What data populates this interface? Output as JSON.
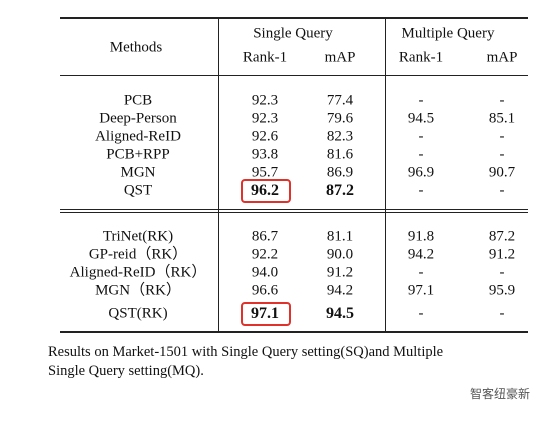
{
  "table": {
    "methods_header": "Methods",
    "groups": [
      {
        "label": "Single Query",
        "sub": [
          "Rank-1",
          "mAP"
        ]
      },
      {
        "label": "Multiple Query",
        "sub": [
          "Rank-1",
          "mAP"
        ]
      }
    ],
    "sections": [
      [
        [
          "PCB",
          "92.3",
          "77.4",
          "-",
          "-"
        ],
        [
          "Deep-Person",
          "92.3",
          "79.6",
          "94.5",
          "85.1"
        ],
        [
          "Aligned-ReID",
          "92.6",
          "82.3",
          "-",
          "-"
        ],
        [
          "PCB+RPP",
          "93.8",
          "81.6",
          "-",
          "-"
        ],
        [
          "MGN",
          "95.7",
          "86.9",
          "96.9",
          "90.7"
        ],
        [
          "QST",
          "96.2",
          "87.2",
          "-",
          "-"
        ]
      ],
      [
        [
          "TriNet(RK)",
          "86.7",
          "81.1",
          "91.8",
          "87.2"
        ],
        [
          "GP-reid（RK）",
          "92.2",
          "90.0",
          "94.2",
          "91.2"
        ],
        [
          "Aligned-ReID（RK）",
          "94.0",
          "91.2",
          "-",
          "-"
        ],
        [
          "MGN（RK）",
          "96.6",
          "94.2",
          "97.1",
          "95.9"
        ],
        [
          "QST(RK)",
          "97.1",
          "94.5",
          "-",
          "-"
        ]
      ]
    ]
  },
  "caption": [
    "Results on Market-1501 with Single Query setting(SQ)and Multiple",
    "Single Query setting(MQ)."
  ],
  "watermark": "智客纽豪新"
}
